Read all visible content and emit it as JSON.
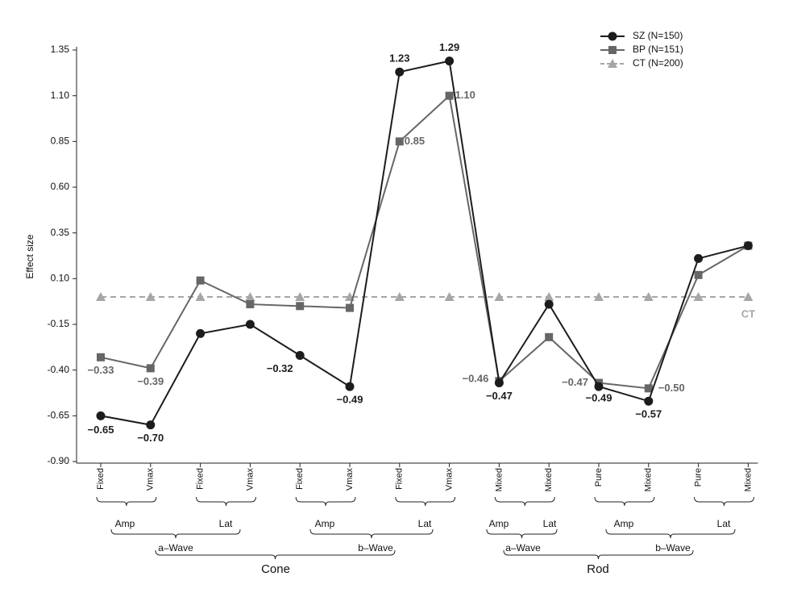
{
  "chart_data": {
    "type": "line",
    "y_label": "Effect size",
    "categories": [
      "Fixed",
      "Vmax",
      "Fixed",
      "Vmax",
      "Fixed",
      "Vmax",
      "Fixed",
      "Vmax",
      "Mixed",
      "Mixed",
      "Pure",
      "Mixed",
      "Pure",
      "Mixed"
    ],
    "ylim": [
      -0.9,
      1.35
    ],
    "yticks": [
      {
        "value": -0.9,
        "label": "-0.90"
      },
      -0.65,
      {
        "value": -0.4,
        "label": "-0.40"
      },
      -0.15,
      {
        "value": 0.1,
        "label": "0.10"
      },
      0.35,
      {
        "value": 0.6,
        "label": "0.60"
      },
      0.85,
      {
        "value": 1.1,
        "label": "1.10"
      },
      1.35
    ],
    "legend": "top-right",
    "series": [
      {
        "name": "SZ (N=150)",
        "color": "#1c1c1c",
        "marker": "circle",
        "dashed": false,
        "values": [
          -0.65,
          -0.7,
          -0.2,
          -0.15,
          -0.32,
          -0.49,
          1.23,
          1.29,
          -0.47,
          -0.04,
          -0.49,
          -0.57,
          0.21,
          0.28
        ],
        "value_labels": [
          "−0.65",
          "−0.70",
          null,
          null,
          "−0.32",
          "−0.49",
          "1.23",
          "1.29",
          "−0.47",
          null,
          "−0.49",
          "−0.57",
          null,
          null
        ]
      },
      {
        "name": "BP (N=151)",
        "color": "#666666",
        "marker": "square",
        "dashed": false,
        "values": [
          -0.33,
          -0.39,
          0.09,
          -0.04,
          -0.05,
          -0.06,
          0.85,
          1.1,
          -0.46,
          -0.22,
          -0.47,
          -0.5,
          0.12,
          0.28
        ],
        "value_labels": [
          "−0.33",
          "−0.39",
          null,
          null,
          null,
          null,
          "0.85",
          "1.10",
          "−0.46",
          null,
          "−0.47",
          "−0.50",
          null,
          null
        ]
      },
      {
        "name": "CT (N=200)",
        "color": "#a6a6a6",
        "marker": "triangle",
        "dashed": true,
        "line_label": "CT",
        "values": [
          0,
          0,
          0,
          0,
          0,
          0,
          0,
          0,
          0,
          0,
          0,
          0,
          0,
          0
        ]
      }
    ],
    "category_groups": {
      "level2": [
        "Amp",
        "Lat",
        "Amp",
        "Lat",
        "Amp",
        "Lat",
        "Amp",
        "Lat"
      ],
      "level3": [
        "a–Wave",
        "b–Wave",
        "a–Wave",
        "b–Wave"
      ],
      "level4": [
        "Cone",
        "Rod"
      ]
    }
  }
}
